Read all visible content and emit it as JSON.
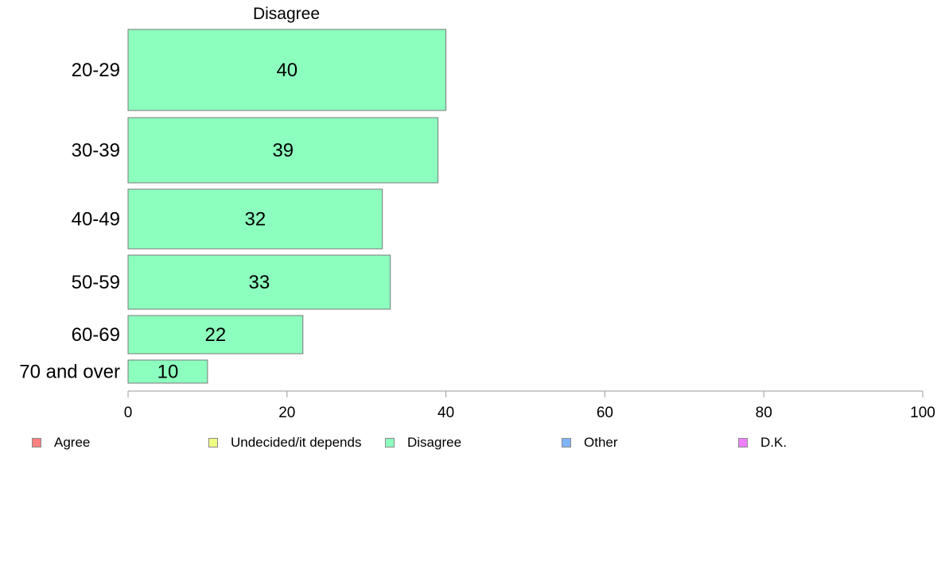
{
  "chart_data": {
    "type": "bar",
    "orientation": "horizontal",
    "title": "Disagree",
    "categories": [
      "20-29",
      "30-39",
      "40-49",
      "50-59",
      "60-69",
      "70 and over"
    ],
    "values": [
      40,
      39,
      32,
      33,
      22,
      10
    ],
    "value_labels": [
      "40",
      "39",
      "32",
      "33",
      "22",
      "10"
    ],
    "xlim": [
      0,
      100
    ],
    "xticks": [
      "0",
      "20",
      "40",
      "60",
      "80",
      "100"
    ],
    "xlabel": "",
    "ylabel": "",
    "grid": false,
    "bar_color": "#8cffbe",
    "legend_placement": "bottom",
    "legend": [
      {
        "label": "Agree",
        "color": "#ff8080"
      },
      {
        "label": "Undecided/it depends",
        "color": "#f0ff80"
      },
      {
        "label": "Disagree",
        "color": "#8cffbe"
      },
      {
        "label": "Other",
        "color": "#80b4ff"
      },
      {
        "label": "D.K.",
        "color": "#ee80ff"
      }
    ]
  }
}
